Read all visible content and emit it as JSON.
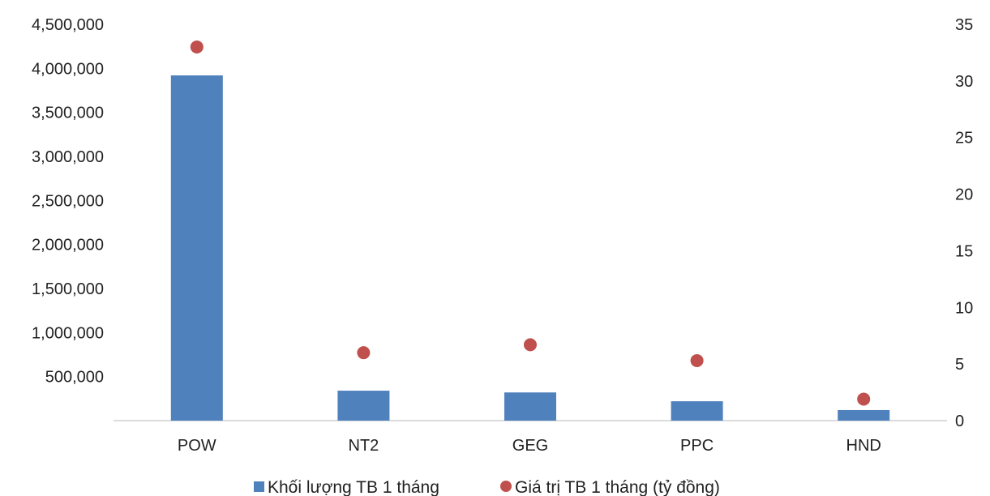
{
  "chart_data": {
    "type": "bar",
    "categories": [
      "POW",
      "NT2",
      "GEG",
      "PPC",
      "HND"
    ],
    "series": [
      {
        "name": "Khối lượng TB 1 tháng",
        "chart_type": "bar",
        "axis": "left",
        "color": "#4f81bd",
        "values": [
          3920000,
          340000,
          320000,
          220000,
          120000
        ]
      },
      {
        "name": "Giá trị TB 1 tháng (tỷ đồng)",
        "chart_type": "scatter",
        "axis": "right",
        "color": "#c0504d",
        "values": [
          33,
          6,
          6.7,
          5.3,
          1.9
        ]
      }
    ],
    "y_left": {
      "range": [
        0,
        4500000
      ],
      "ticks": [
        500000,
        1000000,
        1500000,
        2000000,
        2500000,
        3000000,
        3500000,
        4000000,
        4500000
      ],
      "tick_labels": [
        "500,000",
        "1,000,000",
        "1,500,000",
        "2,000,000",
        "2,500,000",
        "3,000,000",
        "3,500,000",
        "4,000,000",
        "4,500,000"
      ]
    },
    "y_right": {
      "range": [
        0,
        35
      ],
      "ticks": [
        0,
        5,
        10,
        15,
        20,
        25,
        30,
        35
      ],
      "tick_labels": [
        "0",
        "5",
        "10",
        "15",
        "20",
        "25",
        "30",
        "35"
      ]
    },
    "grid": false,
    "legend": "bottom"
  }
}
